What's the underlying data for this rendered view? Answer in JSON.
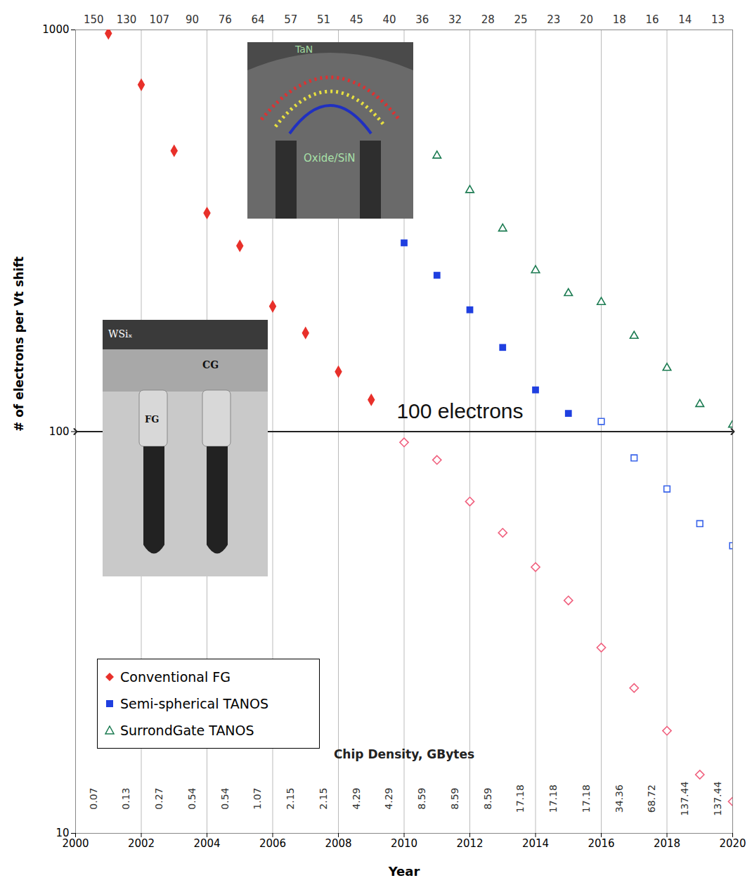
{
  "chart_data": {
    "type": "scatter",
    "x_label": "Year",
    "y_label": "# of electrons per Vt shift",
    "x": [
      2001,
      2002,
      2003,
      2004,
      2005,
      2006,
      2007,
      2008,
      2009,
      2010,
      2011,
      2012,
      2013,
      2014,
      2015,
      2016,
      2017,
      2018,
      2019,
      2020
    ],
    "xlim": [
      2000,
      2020
    ],
    "xticks": [
      2000,
      2002,
      2004,
      2006,
      2008,
      2010,
      2012,
      2014,
      2016,
      2018,
      2020
    ],
    "ylim": [
      10,
      1000
    ],
    "yticks": [
      10,
      100,
      1000
    ],
    "log": "y",
    "grid": true,
    "legend": "lower left",
    "series": [
      {
        "name": "Conventional FG",
        "color": "#e8302a",
        "marker": "diamond",
        "values": [
          980,
          730,
          500,
          350,
          290,
          205,
          176,
          141,
          120,
          null,
          null,
          null,
          null,
          null,
          null,
          null,
          null,
          null,
          null,
          null
        ]
      },
      {
        "name": "Conventional FG",
        "color": "#f0607e",
        "marker": "diamond-open",
        "values": [
          null,
          null,
          null,
          null,
          null,
          null,
          null,
          null,
          null,
          94,
          85,
          67,
          56,
          46,
          38,
          29,
          23,
          18,
          14,
          12
        ]
      },
      {
        "name": "Semi-spherical TANOS",
        "color": "#1f3fe0",
        "marker": "square",
        "values": [
          null,
          null,
          null,
          null,
          null,
          null,
          null,
          null,
          null,
          295,
          245,
          201,
          162,
          127,
          111,
          null,
          null,
          null,
          null,
          null
        ]
      },
      {
        "name": "Semi-spherical TANOS",
        "color": "#3a64ea",
        "marker": "square-open",
        "values": [
          null,
          null,
          null,
          null,
          null,
          null,
          null,
          null,
          null,
          null,
          null,
          null,
          null,
          null,
          null,
          106,
          86,
          72,
          59,
          52
        ]
      },
      {
        "name": "SurrondGate TANOS",
        "color": "#1a7a50",
        "marker": "triangle-open",
        "values": [
          null,
          null,
          null,
          null,
          null,
          null,
          null,
          null,
          null,
          null,
          486,
          399,
          320,
          252,
          221,
          210,
          173,
          144,
          117,
          104
        ]
      }
    ],
    "top_labels": [
      150,
      130,
      107,
      90,
      76,
      64,
      57,
      51,
      45,
      40,
      36,
      32,
      28,
      25,
      23,
      20,
      18,
      16,
      14,
      13
    ],
    "chip_density": {
      "title": "Chip Density, GBytes",
      "values": [
        0.07,
        0.13,
        0.27,
        0.54,
        0.54,
        1.07,
        2.15,
        2.15,
        4.29,
        4.29,
        8.59,
        8.59,
        8.59,
        17.18,
        17.18,
        17.18,
        34.36,
        68.72,
        137.44,
        137.44
      ]
    },
    "annotations": [
      {
        "text": "100 electrons",
        "x": 2011.7,
        "y": 112
      }
    ],
    "arrows": [
      {
        "x1": 2000,
        "x2": 2020,
        "y": 100
      }
    ],
    "insets": [
      {
        "labels": [
          "TaN",
          "Oxide/SiN"
        ]
      },
      {
        "labels": [
          "WSiₓ",
          "CG",
          "FG"
        ]
      }
    ]
  }
}
